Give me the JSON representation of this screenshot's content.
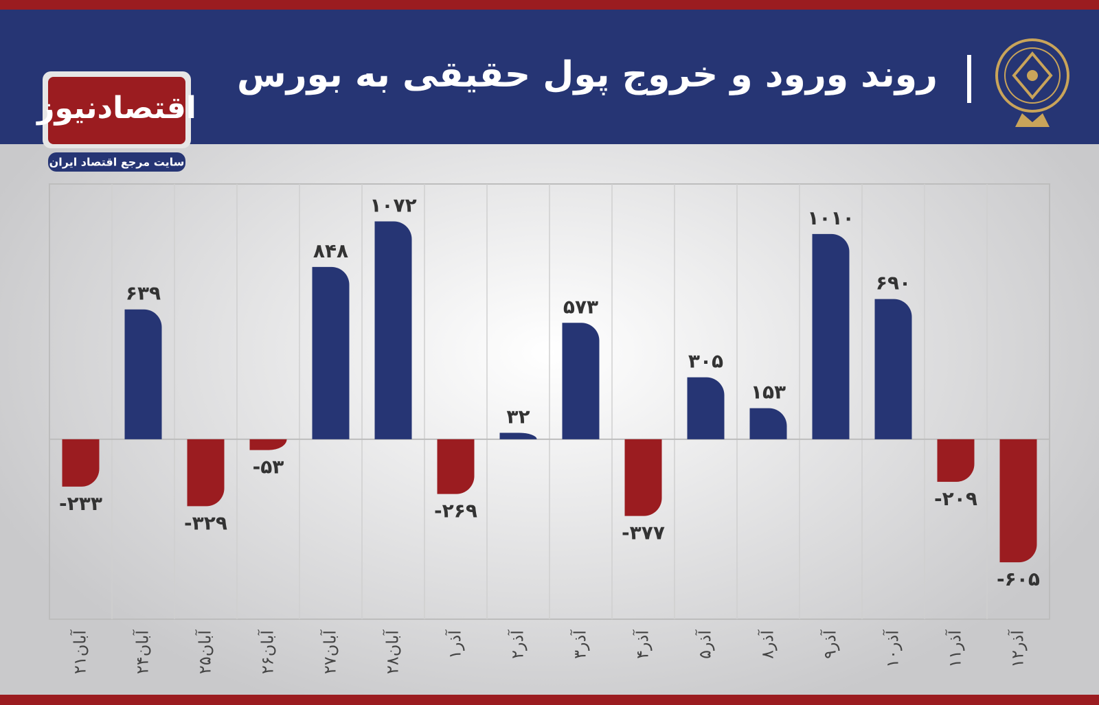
{
  "chart_data": {
    "type": "bar",
    "title": "روند ورود و خروج پول حقیقی به بورس",
    "brand": "اقتصادنیوز",
    "brand_tagline": "سایت مرجع اقتصاد ایران",
    "categories": [
      "۲۱آبان",
      "۲۴آبان",
      "۲۵آبان",
      "۲۶آبان",
      "۲۷آبان",
      "۲۸آبان",
      "۱آذر",
      "۲آذر",
      "۳آذر",
      "۴آذر",
      "۵آذر",
      "۸آذر",
      "۹آذر",
      "۱۰آذر",
      "۱۱آذر",
      "۱۲آذر"
    ],
    "values": [
      -233,
      639,
      -329,
      -53,
      848,
      1072,
      -269,
      32,
      573,
      -377,
      305,
      153,
      1010,
      690,
      -209,
      -605
    ],
    "value_labels": [
      "-۲۳۳",
      "۶۳۹",
      "-۳۲۹",
      "-۵۳",
      "۸۴۸",
      "۱۰۷۲",
      "-۲۶۹",
      "۳۲",
      "۵۷۳",
      "-۳۷۷",
      "۳۰۵",
      "۱۵۳",
      "۱۰۱۰",
      "۶۹۰",
      "-۲۰۹",
      "-۶۰۵"
    ],
    "positive_color": "#263574",
    "negative_color": "#9b1c20",
    "ylim": [
      -885,
      1256
    ]
  }
}
